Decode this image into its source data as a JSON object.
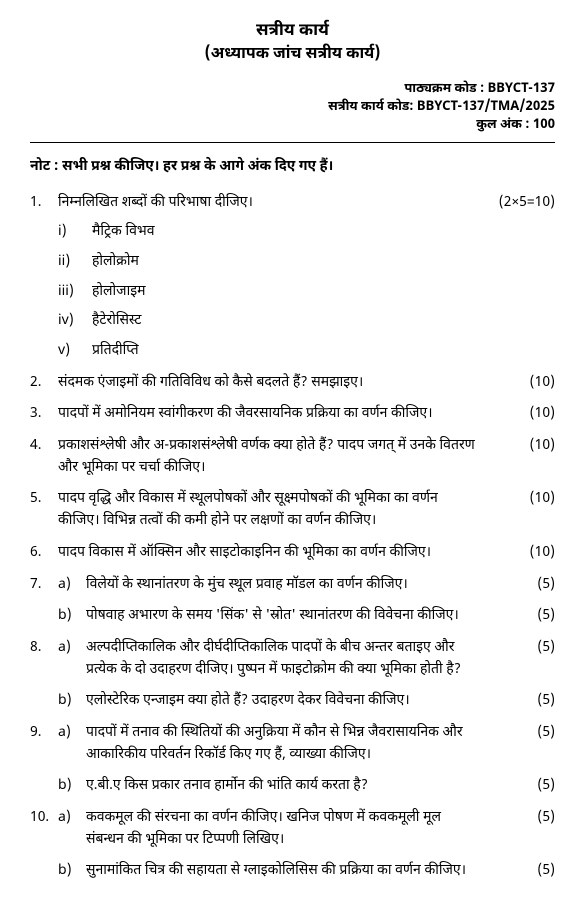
{
  "header": {
    "title": "सत्रीय कार्य",
    "subtitle": "(अध्यापक जांच सत्रीय कार्य)",
    "course_code_label": "पाठ्यक्रम कोड : BBYCT-137",
    "assignment_code_label": "सत्रीय कार्य कोड: BBYCT-137/TMA/2025",
    "total_marks_label": "कुल अंक : 100"
  },
  "note": "नोट : सभी प्रश्न कीजिए।  हर प्रश्न के आगे अंक दिए गए हैं।",
  "q1": {
    "num": "1.",
    "text": "निम्नलिखित शब्दों की परिभाषा दीजिए।",
    "marks": "(2×5=10)",
    "items": [
      {
        "n": "i)",
        "t": "मैट्रिक विभव"
      },
      {
        "n": "ii)",
        "t": "होलोक्रोम"
      },
      {
        "n": "iii)",
        "t": "होलोजाइम"
      },
      {
        "n": "iv)",
        "t": "हैटेरोसिस्ट"
      },
      {
        "n": "v)",
        "t": "प्रतिदीप्ति"
      }
    ]
  },
  "q2": {
    "num": "2.",
    "text": "संदमक एंजाइमों की गतिविविध को कैसे बदलते हैं? समझाइए।",
    "marks": "(10)"
  },
  "q3": {
    "num": "3.",
    "text": "पादपों में अमोनियम स्वांगीकरण की जैवरसायनिक प्रक्रिया का वर्णन कीजिए।",
    "marks": "(10)"
  },
  "q4": {
    "num": "4.",
    "text": "प्रकाशसंश्लेषी और अ-प्रकाशसंश्लेषी वर्णक क्या होते हैं? पादप जगत् में उनके वितरण और भूमिका पर चर्चा कीजिए।",
    "marks": "(10)"
  },
  "q5": {
    "num": "5.",
    "text": "पादप वृद्धि और विकास में स्थूलपोषकों और सूक्ष्मपोषकों की भूमिका का वर्णन कीजिए। विभिन्न तत्वों की कमी होने पर लक्षणों का वर्णन कीजिए।",
    "marks": "(10)"
  },
  "q6": {
    "num": "6.",
    "text": "पादप विकास में ऑक्सिन और साइटोकाइनिन की भूमिका का वर्णन कीजिए।",
    "marks": "(10)"
  },
  "q7": {
    "num": "7.",
    "a": {
      "label": "a)",
      "text": "विलेयों के स्थानांतरण के मुंच स्थूल प्रवाह मॉडल का वर्णन कीजिए।",
      "marks": "(5)"
    },
    "b": {
      "label": "b)",
      "text": "पोषवाह अभारण के समय 'सिंक' से 'स्रोत' स्थानांतरण की विवेचना कीजिए।",
      "marks": "(5)"
    }
  },
  "q8": {
    "num": "8.",
    "a": {
      "label": "a)",
      "text": "अल्पदीप्तिकालिक और दीर्घदीप्तिकालिक पादपों के बीच अन्तर बताइए और प्रत्येक के दो उदाहरण दीजिए। पुष्पन में फाइटोक्रोम की क्या भूमिका होती है?",
      "marks": "(5)"
    },
    "b": {
      "label": "b)",
      "text": "एलोस्टेरिक एन्जाइम क्या होते हैं? उदाहरण देकर विवेचना कीजिए।",
      "marks": "(5)"
    }
  },
  "q9": {
    "num": "9.",
    "a": {
      "label": "a)",
      "text": "पादपों में तनाव की स्थितियों की अनुक्रिया में कौन से भिन्न जैवरासायनिक और आकारिकीय परिवर्तन रिकॉर्ड किए गए हैं, व्याख्या कीजिए।",
      "marks": "(5)"
    },
    "b": {
      "label": "b)",
      "text": "ए.बी.ए किस प्रकार तनाव हार्मोन की भांति कार्य करता है?",
      "marks": "(5)"
    }
  },
  "q10": {
    "num": "10.",
    "a": {
      "label": "a)",
      "text": "कवकमूल की संरचना का वर्णन कीजिए। खनिज पोषण में कवकमूली मूल संबन्धन की भूमिका पर टिप्पणी लिखिए।",
      "marks": "(5)"
    },
    "b": {
      "label": "b)",
      "text": "सुनामांकित चित्र की सहायता से ग्लाइकोलिसिस की प्रक्रिया का वर्णन कीजिए।",
      "marks": "(5)"
    }
  }
}
